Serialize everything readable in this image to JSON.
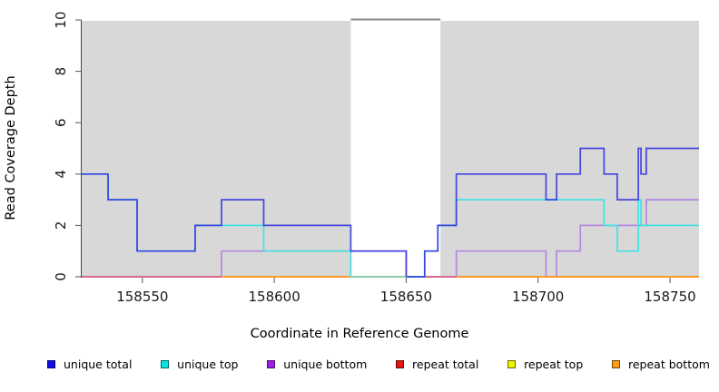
{
  "legend": [
    {
      "label": "unique total",
      "color": "#0f0fe8"
    },
    {
      "label": "unique top",
      "color": "#00e6e6"
    },
    {
      "label": "unique bottom",
      "color": "#9d1fe8"
    },
    {
      "label": "repeat total",
      "color": "#e81414"
    },
    {
      "label": "repeat top",
      "color": "#f0f000"
    },
    {
      "label": "repeat bottom",
      "color": "#ff9d14"
    }
  ],
  "chart_data": {
    "type": "line",
    "subtype": "step-coverage",
    "x_label": "Coordinate in Reference Genome",
    "y_label": "Read Coverage Depth",
    "x_range": [
      158527,
      158761
    ],
    "y_range": [
      0,
      10
    ],
    "x_ticks": [
      158550,
      158600,
      158650,
      158700,
      158750
    ],
    "y_ticks": [
      0,
      2,
      4,
      6,
      8,
      10
    ],
    "grid": false,
    "plot_bg_color": "#d8d8d8",
    "no_data_gap": {
      "from": 158629,
      "to": 158663
    },
    "gap_cap_line": {
      "from": 158629,
      "to": 158663,
      "value": 10,
      "color": "#8a8a8a"
    },
    "zero_overlay": {
      "from": 158629,
      "to": 158650,
      "value": 0,
      "color": "#8fd0a8"
    },
    "series": [
      {
        "name": "repeat top",
        "color": "#f0e80c",
        "opacity": 1,
        "segments": [
          [
            158527,
            158761,
            0
          ]
        ]
      },
      {
        "name": "unique bottom",
        "color": "#b388e0",
        "opacity": 1,
        "segments": [
          [
            158527,
            158580,
            0
          ],
          [
            158580,
            158650,
            1
          ],
          [
            158650,
            158669,
            0
          ],
          [
            158669,
            158703,
            1
          ],
          [
            158703,
            158707,
            0
          ],
          [
            158707,
            158716,
            1
          ],
          [
            158716,
            158741,
            2
          ],
          [
            158741,
            158761,
            3
          ]
        ]
      },
      {
        "name": "repeat total",
        "color": "#d9618c",
        "opacity": 1,
        "segments": [
          [
            158527,
            158761,
            0
          ]
        ]
      },
      {
        "name": "repeat bottom",
        "color": "#ff9d1e",
        "opacity": 1,
        "segments": [
          [
            158580,
            158629,
            0
          ],
          [
            158669,
            158761,
            0
          ]
        ]
      },
      {
        "name": "unique top",
        "color": "#45e0e0",
        "opacity": 1,
        "segments": [
          [
            158527,
            158537,
            4
          ],
          [
            158537,
            158548,
            3
          ],
          [
            158548,
            158570,
            1
          ],
          [
            158570,
            158596,
            2
          ],
          [
            158596,
            158629,
            1
          ],
          [
            158629,
            158657,
            0
          ],
          [
            158657,
            158662,
            1
          ],
          [
            158662,
            158669,
            2
          ],
          [
            158669,
            158725,
            3
          ],
          [
            158725,
            158730,
            2
          ],
          [
            158730,
            158738,
            1
          ],
          [
            158738,
            158739,
            3
          ],
          [
            158739,
            158761,
            2
          ]
        ]
      },
      {
        "name": "unique total",
        "color": "#2b2be0",
        "opacity": 0.85,
        "segments": [
          [
            158527,
            158537,
            4
          ],
          [
            158537,
            158548,
            3
          ],
          [
            158548,
            158570,
            1
          ],
          [
            158570,
            158580,
            2
          ],
          [
            158580,
            158596,
            3
          ],
          [
            158596,
            158629,
            2
          ],
          [
            158629,
            158650,
            1
          ],
          [
            158650,
            158657,
            0
          ],
          [
            158657,
            158662,
            1
          ],
          [
            158662,
            158669,
            2
          ],
          [
            158669,
            158703,
            4
          ],
          [
            158703,
            158707,
            3
          ],
          [
            158707,
            158716,
            4
          ],
          [
            158716,
            158725,
            5
          ],
          [
            158725,
            158730,
            4
          ],
          [
            158730,
            158738,
            3
          ],
          [
            158738,
            158739,
            5
          ],
          [
            158739,
            158741,
            4
          ],
          [
            158741,
            158761,
            5
          ]
        ]
      }
    ]
  }
}
